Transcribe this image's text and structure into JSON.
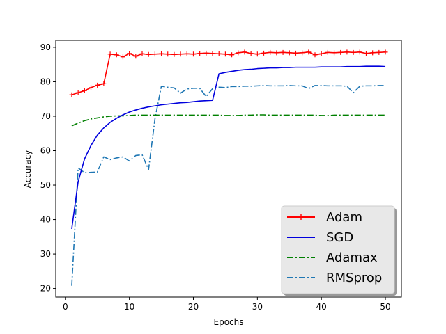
{
  "chart_data": {
    "type": "line",
    "title": "",
    "xlabel": "Epochs",
    "ylabel": "Accuracy",
    "xlim": [
      -1.5,
      52.5
    ],
    "ylim": [
      17.5,
      92
    ],
    "xticks": [
      0,
      10,
      20,
      30,
      40,
      50
    ],
    "yticks": [
      20,
      30,
      40,
      50,
      60,
      70,
      80,
      90
    ],
    "grid": false,
    "legend_position": "lower-right",
    "x": [
      1,
      2,
      3,
      4,
      5,
      6,
      7,
      8,
      9,
      10,
      11,
      12,
      13,
      14,
      15,
      16,
      17,
      18,
      19,
      20,
      21,
      22,
      23,
      24,
      25,
      26,
      27,
      28,
      29,
      30,
      31,
      32,
      33,
      34,
      35,
      36,
      37,
      38,
      39,
      40,
      41,
      42,
      43,
      44,
      45,
      46,
      47,
      48,
      49,
      50
    ],
    "series": [
      {
        "name": "Adam",
        "color": "#ff0000",
        "style": "solid",
        "marker": "plus",
        "values": [
          76.2,
          76.8,
          77.4,
          78.3,
          79.0,
          79.4,
          88.0,
          87.8,
          87.2,
          88.2,
          87.4,
          88.1,
          87.9,
          88.0,
          88.1,
          88.0,
          87.9,
          88.0,
          88.1,
          88.0,
          88.2,
          88.3,
          88.2,
          88.1,
          88.0,
          87.8,
          88.4,
          88.6,
          88.2,
          88.0,
          88.3,
          88.5,
          88.4,
          88.5,
          88.4,
          88.3,
          88.4,
          88.6,
          87.8,
          88.1,
          88.5,
          88.4,
          88.5,
          88.6,
          88.5,
          88.6,
          88.2,
          88.4,
          88.5,
          88.6
        ]
      },
      {
        "name": "SGD",
        "color": "#0000dd",
        "style": "solid",
        "values": [
          37.3,
          51.0,
          57.6,
          61.5,
          64.5,
          66.6,
          68.2,
          69.4,
          70.4,
          71.2,
          71.8,
          72.3,
          72.7,
          73.0,
          73.3,
          73.5,
          73.7,
          73.9,
          74.0,
          74.2,
          74.4,
          74.5,
          74.6,
          82.3,
          82.7,
          83.0,
          83.3,
          83.5,
          83.6,
          83.8,
          83.9,
          84.0,
          84.0,
          84.1,
          84.1,
          84.2,
          84.2,
          84.2,
          84.2,
          84.3,
          84.3,
          84.3,
          84.3,
          84.4,
          84.4,
          84.4,
          84.5,
          84.5,
          84.5,
          84.4
        ]
      },
      {
        "name": "Adamax",
        "color": "#008000",
        "style": "dashdot",
        "values": [
          67.2,
          68.0,
          68.7,
          69.2,
          69.5,
          69.8,
          70.0,
          70.1,
          70.1,
          70.2,
          70.3,
          70.3,
          70.3,
          70.3,
          70.3,
          70.3,
          70.3,
          70.3,
          70.3,
          70.3,
          70.3,
          70.3,
          70.3,
          70.3,
          70.2,
          70.2,
          70.2,
          70.3,
          70.3,
          70.4,
          70.4,
          70.3,
          70.3,
          70.3,
          70.3,
          70.3,
          70.3,
          70.3,
          70.3,
          70.2,
          70.2,
          70.3,
          70.3,
          70.3,
          70.3,
          70.3,
          70.3,
          70.3,
          70.3,
          70.3
        ]
      },
      {
        "name": "RMSprop",
        "color": "#1f77b4",
        "style": "dashdot",
        "values": [
          20.8,
          55.0,
          53.6,
          53.7,
          53.8,
          58.2,
          57.4,
          57.9,
          58.2,
          57.0,
          58.6,
          58.8,
          54.5,
          69.2,
          78.7,
          78.4,
          78.2,
          76.7,
          77.9,
          78.1,
          78.1,
          75.7,
          78.0,
          78.4,
          78.3,
          78.6,
          78.6,
          78.7,
          78.7,
          78.8,
          78.9,
          78.8,
          78.8,
          78.8,
          78.9,
          78.8,
          78.8,
          78.0,
          78.9,
          78.9,
          78.8,
          78.8,
          78.8,
          78.7,
          76.8,
          78.7,
          78.8,
          78.8,
          78.9,
          78.9
        ]
      }
    ]
  }
}
